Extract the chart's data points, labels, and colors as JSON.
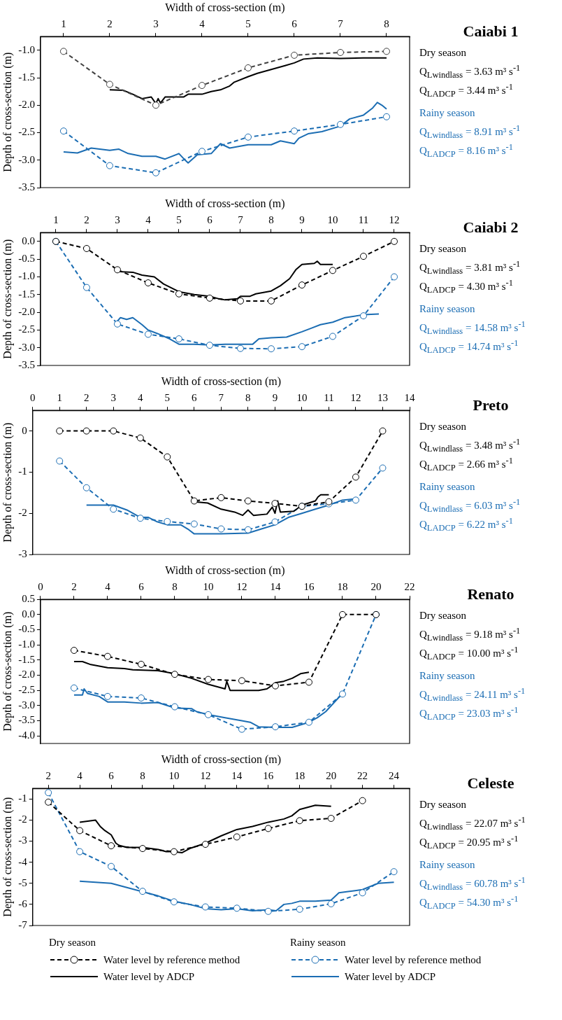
{
  "chart_data": [
    {
      "type": "line",
      "xlabel": "Width of cross-section (m)",
      "ylabel": "Depth of cross-section (m)",
      "xlim": [
        0.5,
        8.5
      ],
      "xticks": [
        1,
        2,
        3,
        4,
        5,
        6,
        7,
        8
      ],
      "ylim": [
        -3.5,
        -0.75
      ],
      "yticks": [
        -3.5,
        {
          "value": -3,
          "label": "-3.0"
        },
        -2.5,
        {
          "value": -2,
          "label": "-2.0"
        },
        -1.5,
        {
          "value": -1,
          "label": "-1.0"
        }
      ],
      "grid": false,
      "legend": false,
      "series": [
        {
          "color": "#404040",
          "marker": "circle",
          "line_style": "dashed",
          "x": [
            1,
            2,
            3,
            4,
            5,
            6,
            7,
            8
          ],
          "values": [
            -1.02,
            -1.62,
            -2.0,
            -1.64,
            -1.32,
            -1.09,
            -1.04,
            -1.02
          ]
        },
        {
          "color": "#000000",
          "marker": "none",
          "line_style": "solid",
          "x": [
            2,
            2.3,
            2.5,
            2.7,
            2.9,
            3.0,
            3.05,
            3.1,
            3.2,
            3.6,
            3.7,
            4.0,
            4.2,
            4.4,
            4.6,
            4.7,
            5,
            5.2,
            5.5,
            5.8,
            6,
            6.2,
            6.5,
            7,
            7.5,
            8
          ],
          "values": [
            -1.72,
            -1.73,
            -1.8,
            -1.88,
            -1.85,
            -1.97,
            -1.88,
            -1.96,
            -1.85,
            -1.85,
            -1.8,
            -1.8,
            -1.75,
            -1.72,
            -1.65,
            -1.58,
            -1.48,
            -1.42,
            -1.35,
            -1.28,
            -1.23,
            -1.16,
            -1.14,
            -1.15,
            -1.14,
            -1.14
          ]
        },
        {
          "color": "#1b6db3",
          "marker": "circle",
          "line_style": "dashed",
          "x": [
            1,
            2,
            3,
            4,
            5,
            6,
            7,
            8
          ],
          "values": [
            -2.47,
            -3.1,
            -3.23,
            -2.84,
            -2.58,
            -2.47,
            -2.35,
            -2.21
          ]
        },
        {
          "color": "#1b6db3",
          "marker": "none",
          "line_style": "solid",
          "x": [
            1,
            1.3,
            1.6,
            2,
            2.2,
            2.4,
            2.7,
            3,
            3.2,
            3.5,
            3.6,
            3.7,
            3.9,
            4.2,
            4.4,
            4.6,
            5,
            5.5,
            5.7,
            6,
            6.1,
            6.3,
            6.6,
            7,
            7.2,
            7.5,
            7.7,
            7.8,
            7.9,
            8
          ],
          "values": [
            -2.85,
            -2.87,
            -2.78,
            -2.82,
            -2.8,
            -2.88,
            -2.93,
            -2.93,
            -2.98,
            -2.88,
            -2.97,
            -3.05,
            -2.9,
            -2.88,
            -2.7,
            -2.78,
            -2.72,
            -2.72,
            -2.65,
            -2.7,
            -2.6,
            -2.52,
            -2.48,
            -2.38,
            -2.25,
            -2.18,
            -2.05,
            -1.95,
            -2.0,
            -2.07
          ]
        }
      ]
    },
    {
      "type": "other",
      "title": "Caiabi 1",
      "annotations": [
        "Dry season",
        "Q$_{Lwindlass}$ = 3.63 m³ s$^{-1}$",
        "Q$_{LADCP}$ = 3.44 m³ s$^{-1}$",
        "Rainy season",
        "Q$_{Lwindlass}$ = 8.91 m³ s$^{-1}$",
        "Q$_{LADCP}$ = 8.16 m³ s$^{-1}$"
      ]
    },
    {
      "type": "line",
      "xlabel": "Width of cross-section (m)",
      "ylabel": "Depth of cross-section (m)",
      "xlim": [
        0.5,
        12.5
      ],
      "xticks": [
        1,
        2,
        3,
        4,
        5,
        6,
        7,
        8,
        9,
        10,
        11,
        12
      ],
      "ylim": [
        -3.5,
        0.25
      ],
      "yticks": [
        -3.5,
        {
          "value": -3,
          "label": "-3.0"
        },
        -2.5,
        {
          "value": -2,
          "label": "-2.0"
        },
        -1.5,
        {
          "value": -1,
          "label": "-1.0"
        },
        -0.5,
        {
          "value": 0,
          "label": "0.0"
        }
      ],
      "grid": false,
      "legend": false,
      "series": [
        {
          "color": "#000000",
          "marker": "circle",
          "line_style": "dashed",
          "x": [
            1,
            2,
            3,
            4,
            5,
            6,
            7,
            8,
            9,
            10,
            11,
            12
          ],
          "values": [
            0,
            -0.2,
            -0.8,
            -1.17,
            -1.48,
            -1.6,
            -1.68,
            -1.68,
            -1.23,
            -0.82,
            -0.42,
            0
          ]
        },
        {
          "color": "#000000",
          "marker": "none",
          "line_style": "solid",
          "x": [
            3,
            3.5,
            3.8,
            4.2,
            4.5,
            5,
            5.5,
            6,
            6.3,
            6.5,
            6.9,
            7,
            7.3,
            7.5,
            8,
            8.3,
            8.6,
            8.8,
            9,
            9.4,
            9.5,
            9.6,
            10
          ],
          "values": [
            -0.85,
            -0.87,
            -0.95,
            -1.0,
            -1.2,
            -1.42,
            -1.5,
            -1.55,
            -1.62,
            -1.65,
            -1.62,
            -1.55,
            -1.55,
            -1.48,
            -1.4,
            -1.25,
            -1.05,
            -0.8,
            -0.65,
            -0.62,
            -0.56,
            -0.65,
            -0.65
          ]
        },
        {
          "color": "#1b6db3",
          "marker": "circle",
          "line_style": "dashed",
          "x": [
            1,
            2,
            3,
            4,
            5,
            6,
            7,
            8,
            9,
            10,
            11,
            12
          ],
          "values": [
            0,
            -1.3,
            -2.33,
            -2.62,
            -2.75,
            -2.93,
            -3.02,
            -3.03,
            -2.97,
            -2.68,
            -2.1,
            -1.0
          ]
        },
        {
          "color": "#1b6db3",
          "marker": "none",
          "line_style": "solid",
          "x": [
            3,
            3.1,
            3.3,
            3.5,
            3.8,
            4,
            4.3,
            4.7,
            5,
            5.5,
            6,
            6.5,
            7,
            7.4,
            7.6,
            8,
            8.5,
            9,
            9.3,
            9.6,
            10,
            10.4,
            11,
            11.5
          ],
          "values": [
            -2.25,
            -2.15,
            -2.2,
            -2.15,
            -2.35,
            -2.5,
            -2.6,
            -2.75,
            -2.9,
            -2.9,
            -2.92,
            -2.9,
            -2.9,
            -2.9,
            -2.75,
            -2.72,
            -2.7,
            -2.55,
            -2.45,
            -2.35,
            -2.28,
            -2.15,
            -2.07,
            -2.05
          ]
        }
      ]
    },
    {
      "type": "other",
      "title": "Caiabi 2",
      "annotations": [
        "Dry season",
        "Q$_{Lwindlass}$ = 3.81 m³ s$^{-1}$",
        "Q$_{LADCP}$ = 4.30 m³ s$^{-1}$",
        "Rainy season",
        "Q$_{Lwindlass}$ = 14.58 m³ s$^{-1}$",
        "Q$_{LADCP}$ = 14.74 m³ s$^{-1}$"
      ]
    },
    {
      "type": "line",
      "xlabel": "Width of cross-section (m)",
      "ylabel": "Depth of cross-section (m)",
      "xlim": [
        0,
        14
      ],
      "xticks": [
        0,
        1,
        2,
        3,
        4,
        5,
        6,
        7,
        8,
        9,
        10,
        11,
        12,
        13,
        14
      ],
      "ylim": [
        -3,
        0.5
      ],
      "yticks": [
        -3,
        -2,
        -1,
        0
      ],
      "grid": false,
      "legend": false,
      "series": [
        {
          "color": "#000000",
          "marker": "circle",
          "line_style": "dashed",
          "x": [
            1,
            2,
            3,
            4,
            5,
            6,
            7,
            8,
            9,
            10,
            11,
            12,
            13
          ],
          "values": [
            0,
            0,
            0,
            -0.17,
            -0.63,
            -1.7,
            -1.62,
            -1.7,
            -1.76,
            -1.83,
            -1.72,
            -1.12,
            0
          ]
        },
        {
          "color": "#000000",
          "marker": "none",
          "line_style": "solid",
          "x": [
            6,
            6.5,
            7,
            7.5,
            7.8,
            8,
            8.2,
            8.7,
            8.9,
            9.0,
            9.1,
            9.2,
            9.7,
            10,
            10.5,
            10.6,
            10.7,
            11
          ],
          "values": [
            -1.72,
            -1.75,
            -1.9,
            -1.97,
            -2.05,
            -1.92,
            -2.05,
            -2.02,
            -1.85,
            -2.0,
            -1.7,
            -1.97,
            -1.95,
            -1.8,
            -1.7,
            -1.6,
            -1.55,
            -1.55
          ]
        },
        {
          "color": "#1b6db3",
          "marker": "circle",
          "line_style": "dashed",
          "x": [
            1,
            2,
            3,
            4,
            5,
            6,
            7,
            8,
            9,
            10,
            11,
            12,
            13
          ],
          "values": [
            -0.73,
            -1.38,
            -1.9,
            -2.12,
            -2.2,
            -2.26,
            -2.38,
            -2.4,
            -2.21,
            -1.83,
            -1.77,
            -1.68,
            -0.9
          ]
        },
        {
          "color": "#1b6db3",
          "marker": "none",
          "line_style": "solid",
          "x": [
            2,
            3,
            3.5,
            4,
            4.3,
            4.6,
            5,
            5.5,
            5.8,
            6,
            7,
            8,
            8.5,
            9,
            9.5,
            10,
            10.5,
            11,
            11.5,
            12
          ],
          "values": [
            -1.8,
            -1.8,
            -1.92,
            -2.1,
            -2.1,
            -2.2,
            -2.28,
            -2.28,
            -2.4,
            -2.5,
            -2.5,
            -2.48,
            -2.38,
            -2.28,
            -2.1,
            -2.0,
            -1.9,
            -1.8,
            -1.68,
            -1.65
          ]
        }
      ]
    },
    {
      "type": "other",
      "title": "Preto",
      "annotations": [
        "Dry season",
        "Q$_{Lwindlass}$ = 3.48 m³ s$^{-1}$",
        "Q$_{LADCP}$ = 2.66 m³ s$^{-1}$",
        "Rainy season",
        "Q$_{Lwindlass}$ = 6.03 m³ s$^{-1}$",
        "Q$_{LADCP}$ = 6.22 m³ s$^{-1}$"
      ]
    },
    {
      "type": "line",
      "xlabel": "Width of cross-section (m)",
      "ylabel": "Depth of cross-section (m)",
      "xlim": [
        0,
        22
      ],
      "xticks": [
        0,
        2,
        4,
        6,
        8,
        10,
        12,
        14,
        16,
        18,
        20,
        22
      ],
      "ylim": [
        -4.25,
        0.5
      ],
      "yticks": [
        {
          "value": -4,
          "label": "-4.0"
        },
        -3.5,
        {
          "value": -3,
          "label": "-3.0"
        },
        -2.5,
        {
          "value": -2,
          "label": "-2.0"
        },
        -1.5,
        {
          "value": -1,
          "label": "-1.0"
        },
        -0.5,
        {
          "value": 0,
          "label": "0.0"
        },
        0.5
      ],
      "grid": false,
      "legend": false,
      "series": [
        {
          "color": "#000000",
          "marker": "circle",
          "line_style": "dashed",
          "x": [
            2,
            4,
            6,
            8,
            10,
            12,
            14,
            16,
            18,
            20
          ],
          "values": [
            -1.18,
            -1.38,
            -1.64,
            -1.97,
            -2.14,
            -2.18,
            -2.35,
            -2.23,
            0,
            0
          ]
        },
        {
          "color": "#000000",
          "marker": "none",
          "line_style": "solid",
          "x": [
            2,
            2.5,
            3,
            4,
            5,
            5.5,
            7,
            8,
            9,
            10,
            11,
            11.1,
            11.3,
            12,
            13,
            13.5,
            14,
            14.5,
            15,
            15.5,
            16
          ],
          "values": [
            -1.55,
            -1.55,
            -1.65,
            -1.75,
            -1.78,
            -1.82,
            -1.85,
            -1.95,
            -2.1,
            -2.3,
            -2.45,
            -2.2,
            -2.5,
            -2.5,
            -2.5,
            -2.45,
            -2.25,
            -2.2,
            -2.1,
            -1.95,
            -1.9
          ]
        },
        {
          "color": "#1b6db3",
          "marker": "circle",
          "line_style": "dashed",
          "x": [
            2,
            4,
            6,
            8,
            10,
            12,
            14,
            16,
            18,
            20
          ],
          "values": [
            -2.42,
            -2.7,
            -2.75,
            -3.04,
            -3.3,
            -3.78,
            -3.7,
            -3.55,
            -2.62,
            0
          ]
        },
        {
          "color": "#1b6db3",
          "marker": "none",
          "line_style": "solid",
          "x": [
            2,
            2.5,
            2.6,
            2.8,
            3.5,
            4,
            5,
            6,
            7,
            8,
            9,
            9.3,
            10,
            11,
            12,
            12.5,
            13,
            14,
            15,
            16,
            16.5,
            17,
            17.5,
            18
          ],
          "values": [
            -2.65,
            -2.65,
            -2.45,
            -2.6,
            -2.7,
            -2.88,
            -2.88,
            -2.92,
            -2.9,
            -3.08,
            -3.1,
            -3.2,
            -3.3,
            -3.4,
            -3.5,
            -3.55,
            -3.7,
            -3.72,
            -3.72,
            -3.55,
            -3.4,
            -3.2,
            -2.9,
            -2.6
          ]
        }
      ]
    },
    {
      "type": "other",
      "title": "Renato",
      "annotations": [
        "Dry season",
        "Q$_{Lwindlass}$ = 9.18 m³ s$^{-1}$",
        "Q$_{LADCP}$ = 10.00 m³ s$^{-1}$",
        "Rainy season",
        "Q$_{Lwindlass}$ = 24.11 m³ s$^{-1}$",
        "Q$_{LADCP}$ = 23.03 m³ s$^{-1}$"
      ]
    },
    {
      "type": "line",
      "xlabel": "Width of cross-section (m)",
      "ylabel": "Depth of cross-section (m)",
      "xlim": [
        1,
        25
      ],
      "xticks": [
        2,
        4,
        6,
        8,
        10,
        12,
        14,
        16,
        18,
        20,
        22,
        24
      ],
      "ylim": [
        -7,
        -0.5
      ],
      "yticks": [
        -7,
        -6,
        -5,
        -4,
        -3,
        -2,
        -1
      ],
      "grid": false,
      "legend": "bottom",
      "annotations": [
        "Dry season",
        "Rainy season"
      ],
      "series": [
        {
          "name": "Water level by reference method",
          "color": "#000000",
          "marker": "circle",
          "line_style": "dashed",
          "x": [
            2,
            4,
            6,
            8,
            10,
            12,
            14,
            16,
            18,
            20,
            22
          ],
          "values": [
            -1.15,
            -2.5,
            -3.22,
            -3.35,
            -3.5,
            -3.15,
            -2.8,
            -2.4,
            -2.03,
            -1.92,
            -1.08
          ]
        },
        {
          "name": "Water level by ADCP",
          "color": "#000000",
          "marker": "none",
          "line_style": "solid",
          "x": [
            4,
            4.5,
            5,
            5.3,
            5.6,
            6,
            6.3,
            6.5,
            7,
            8,
            9,
            9.5,
            10,
            10.5,
            11,
            12,
            13,
            14,
            15,
            16,
            17,
            17.5,
            18,
            18.5,
            19,
            20
          ],
          "values": [
            -2.1,
            -2.05,
            -2.0,
            -2.3,
            -2.5,
            -2.7,
            -3.1,
            -3.2,
            -3.3,
            -3.3,
            -3.4,
            -3.5,
            -3.5,
            -3.55,
            -3.35,
            -3.1,
            -2.75,
            -2.45,
            -2.3,
            -2.1,
            -1.95,
            -1.8,
            -1.5,
            -1.4,
            -1.3,
            -1.35
          ]
        },
        {
          "name": "Water level by reference method",
          "color": "#1b6db3",
          "marker": "circle",
          "line_style": "dashed",
          "x": [
            2,
            4,
            6,
            8,
            10,
            12,
            14,
            16,
            18,
            20,
            22,
            24
          ],
          "values": [
            -0.7,
            -3.5,
            -4.2,
            -5.38,
            -5.88,
            -6.12,
            -6.18,
            -6.33,
            -6.23,
            -5.97,
            -5.45,
            -4.45
          ]
        },
        {
          "name": "Water level by ADCP",
          "color": "#1b6db3",
          "marker": "none",
          "line_style": "solid",
          "x": [
            4,
            5,
            6,
            7,
            8,
            9,
            10,
            11,
            12,
            13,
            14,
            15,
            16,
            16.5,
            17,
            17.5,
            18,
            19,
            20,
            20.5,
            21,
            22,
            23,
            24
          ],
          "values": [
            -4.9,
            -4.95,
            -5.0,
            -5.2,
            -5.4,
            -5.6,
            -5.85,
            -6.0,
            -6.2,
            -6.25,
            -6.2,
            -6.3,
            -6.25,
            -6.3,
            -6.0,
            -5.95,
            -5.85,
            -5.85,
            -5.8,
            -5.45,
            -5.4,
            -5.3,
            -5.0,
            -4.95
          ]
        }
      ]
    },
    {
      "type": "other",
      "title": "Celeste",
      "annotations": [
        "Dry season",
        "Q$_{Lwindlass}$ = 22.07 m³ s$^{-1}$",
        "Q$_{LADCP}$ = 20.95 m³ s$^{-1}$",
        "Rainy season",
        "Q$_{Lwindlass}$ = 60.78 m³ s$^{-1}$",
        "Q$_{LADCP}$ = 54.30 m³ s$^{-1}$"
      ]
    }
  ]
}
